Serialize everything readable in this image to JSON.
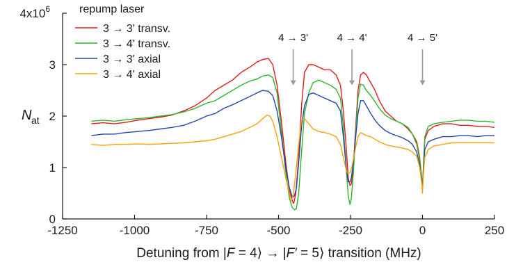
{
  "chart_data": {
    "type": "line",
    "xlabel_parts": {
      "prefix": "Detuning from  |",
      "F": "F",
      "mid1": " = 4",
      "arrow": "⟩ → |",
      "Fp": "F′",
      "mid2": " = 5",
      "suffix": "⟩ transition (MHz)"
    },
    "ylabel_main": "N",
    "ylabel_sub": "at",
    "x_ticks": [
      {
        "value": -1250,
        "label": "-1250"
      },
      {
        "value": -1000,
        "label": "-1000"
      },
      {
        "value": -750,
        "label": "-750"
      },
      {
        "value": -500,
        "label": "-500"
      },
      {
        "value": -250,
        "label": "-250"
      },
      {
        "value": 0,
        "label": "0"
      },
      {
        "value": 250,
        "label": "250"
      }
    ],
    "y_ticks": [
      {
        "value": 0,
        "label": "0"
      },
      {
        "value": 1,
        "label": "1"
      },
      {
        "value": 2,
        "label": "2"
      },
      {
        "value": 3,
        "label": "3"
      },
      {
        "value": 4,
        "label": "4x10",
        "exp": "6"
      }
    ],
    "xlim": [
      -1250,
      250
    ],
    "ylim": [
      0,
      4
    ],
    "y_unit_multiplier": 1000000,
    "grid": false,
    "legend": {
      "title": "repump laser",
      "placement": "top-left",
      "entries": [
        {
          "label": "3 → 3' transv.",
          "color": "#e01b1b"
        },
        {
          "label": "3 → 4' transv.",
          "color": "#2db52d"
        },
        {
          "label": "3 → 3' axial",
          "color": "#2346a8"
        },
        {
          "label": "3 → 4' axial",
          "color": "#f5a20a"
        }
      ]
    },
    "annotations": [
      {
        "label": "4 → 3'",
        "x": -449,
        "y_arrow_top": 3.3,
        "y_arrow_tip": 2.6
      },
      {
        "label": "4 → 4'",
        "x": -245,
        "y_arrow_top": 3.3,
        "y_arrow_tip": 2.6
      },
      {
        "label": "4 → 5'",
        "x": 0,
        "y_arrow_top": 3.3,
        "y_arrow_tip": 2.6
      }
    ],
    "series": [
      {
        "name": "3 → 3' transv.",
        "color": "#e01b1b",
        "x": [
          -1150,
          -1110,
          -1070,
          -1030,
          -990,
          -950,
          -910,
          -870,
          -830,
          -790,
          -750,
          -720,
          -690,
          -660,
          -630,
          -600,
          -575,
          -555,
          -535,
          -520,
          -505,
          -490,
          -475,
          -462,
          -452,
          -447,
          -440,
          -430,
          -420,
          -410,
          -395,
          -380,
          -360,
          -340,
          -320,
          -300,
          -285,
          -275,
          -265,
          -258,
          -252,
          -247,
          -240,
          -232,
          -224,
          -215,
          -205,
          -195,
          -180,
          -165,
          -150,
          -130,
          -110,
          -90,
          -70,
          -50,
          -35,
          -20,
          -10,
          -3,
          0,
          3,
          8,
          20,
          40,
          70,
          100,
          130,
          160,
          190,
          220,
          250
        ],
        "y": [
          1.85,
          1.87,
          1.85,
          1.88,
          1.92,
          1.95,
          1.98,
          2.02,
          2.1,
          2.2,
          2.35,
          2.5,
          2.6,
          2.7,
          2.85,
          2.95,
          3.05,
          3.1,
          3.12,
          3.0,
          2.6,
          1.9,
          1.1,
          0.55,
          0.35,
          0.3,
          0.5,
          1.2,
          2.2,
          2.85,
          3.0,
          3.0,
          2.95,
          2.9,
          2.9,
          2.8,
          2.6,
          2.1,
          1.4,
          0.8,
          0.65,
          0.68,
          1.0,
          1.8,
          2.5,
          2.8,
          2.85,
          2.8,
          2.65,
          2.5,
          2.3,
          2.1,
          2.0,
          1.9,
          1.85,
          1.75,
          1.65,
          1.5,
          1.2,
          0.8,
          0.6,
          0.95,
          1.55,
          1.72,
          1.8,
          1.85,
          1.85,
          1.82,
          1.82,
          1.8,
          1.8,
          1.78
        ]
      },
      {
        "name": "3 → 4' transv.",
        "color": "#2db52d",
        "x": [
          -1150,
          -1110,
          -1070,
          -1030,
          -990,
          -950,
          -910,
          -870,
          -830,
          -790,
          -750,
          -720,
          -690,
          -660,
          -630,
          -600,
          -575,
          -555,
          -535,
          -520,
          -505,
          -490,
          -475,
          -462,
          -452,
          -445,
          -438,
          -430,
          -420,
          -410,
          -395,
          -380,
          -360,
          -340,
          -320,
          -300,
          -285,
          -275,
          -265,
          -258,
          -252,
          -247,
          -240,
          -232,
          -224,
          -215,
          -205,
          -195,
          -180,
          -165,
          -150,
          -130,
          -110,
          -90,
          -70,
          -50,
          -35,
          -20,
          -10,
          -3,
          0,
          3,
          8,
          20,
          40,
          70,
          100,
          130,
          160,
          190,
          220,
          250
        ],
        "y": [
          1.9,
          1.92,
          1.9,
          1.93,
          1.95,
          1.97,
          2.0,
          2.03,
          2.08,
          2.15,
          2.25,
          2.3,
          2.4,
          2.5,
          2.6,
          2.68,
          2.72,
          2.78,
          2.8,
          2.75,
          2.45,
          1.7,
          0.9,
          0.4,
          0.22,
          0.18,
          0.2,
          0.5,
          1.3,
          2.05,
          2.45,
          2.65,
          2.7,
          2.65,
          2.6,
          2.52,
          2.35,
          1.8,
          1.0,
          0.45,
          0.28,
          0.4,
          0.9,
          1.7,
          2.35,
          2.62,
          2.6,
          2.5,
          2.4,
          2.28,
          2.15,
          2.02,
          1.95,
          1.9,
          1.85,
          1.78,
          1.65,
          1.45,
          1.15,
          0.8,
          0.65,
          1.0,
          1.6,
          1.8,
          1.85,
          1.88,
          1.9,
          1.92,
          1.92,
          1.9,
          1.9,
          1.88
        ]
      },
      {
        "name": "3 → 3' axial",
        "color": "#2346a8",
        "x": [
          -1150,
          -1110,
          -1070,
          -1030,
          -990,
          -950,
          -910,
          -870,
          -830,
          -790,
          -750,
          -720,
          -690,
          -660,
          -630,
          -600,
          -575,
          -555,
          -535,
          -520,
          -505,
          -490,
          -475,
          -462,
          -452,
          -445,
          -438,
          -430,
          -420,
          -410,
          -395,
          -380,
          -360,
          -340,
          -320,
          -300,
          -285,
          -275,
          -265,
          -258,
          -252,
          -247,
          -240,
          -232,
          -224,
          -215,
          -205,
          -195,
          -180,
          -165,
          -150,
          -130,
          -110,
          -90,
          -70,
          -50,
          -35,
          -20,
          -10,
          -3,
          0,
          3,
          8,
          20,
          40,
          70,
          100,
          130,
          160,
          190,
          220,
          250
        ],
        "y": [
          1.62,
          1.65,
          1.65,
          1.68,
          1.7,
          1.72,
          1.75,
          1.78,
          1.82,
          1.9,
          2.0,
          2.05,
          2.15,
          2.22,
          2.3,
          2.38,
          2.45,
          2.5,
          2.48,
          2.4,
          2.1,
          1.6,
          1.0,
          0.6,
          0.42,
          0.45,
          0.6,
          1.1,
          1.8,
          2.2,
          2.42,
          2.45,
          2.4,
          2.35,
          2.3,
          2.25,
          2.1,
          1.6,
          1.0,
          0.72,
          0.72,
          0.8,
          1.1,
          1.6,
          2.05,
          2.3,
          2.3,
          2.2,
          2.05,
          1.92,
          1.82,
          1.72,
          1.66,
          1.62,
          1.58,
          1.52,
          1.45,
          1.3,
          1.05,
          0.75,
          0.62,
          0.9,
          1.35,
          1.5,
          1.55,
          1.6,
          1.6,
          1.62,
          1.62,
          1.6,
          1.62,
          1.62
        ]
      },
      {
        "name": "3 → 4' axial",
        "color": "#f5a20a",
        "x": [
          -1150,
          -1110,
          -1070,
          -1030,
          -990,
          -950,
          -910,
          -870,
          -830,
          -790,
          -750,
          -720,
          -690,
          -660,
          -630,
          -600,
          -575,
          -555,
          -540,
          -530,
          -520,
          -505,
          -490,
          -475,
          -462,
          -455,
          -448,
          -440,
          -430,
          -420,
          -410,
          -395,
          -380,
          -360,
          -340,
          -320,
          -300,
          -285,
          -275,
          -265,
          -258,
          -252,
          -247,
          -240,
          -232,
          -224,
          -215,
          -205,
          -195,
          -180,
          -165,
          -150,
          -130,
          -110,
          -90,
          -70,
          -50,
          -35,
          -20,
          -10,
          -3,
          0,
          3,
          8,
          20,
          40,
          70,
          100,
          130,
          160,
          190,
          220,
          250
        ],
        "y": [
          1.45,
          1.43,
          1.45,
          1.45,
          1.46,
          1.45,
          1.46,
          1.47,
          1.48,
          1.5,
          1.52,
          1.55,
          1.6,
          1.65,
          1.7,
          1.78,
          1.85,
          1.95,
          2.02,
          2.0,
          1.9,
          1.6,
          1.2,
          0.8,
          0.5,
          0.35,
          0.5,
          0.9,
          1.45,
          1.92,
          1.95,
          1.85,
          1.75,
          1.7,
          1.68,
          1.65,
          1.6,
          1.45,
          1.2,
          0.95,
          0.88,
          0.9,
          0.98,
          1.15,
          1.4,
          1.6,
          1.68,
          1.65,
          1.62,
          1.6,
          1.55,
          1.5,
          1.45,
          1.42,
          1.4,
          1.38,
          1.35,
          1.3,
          1.22,
          1.0,
          0.7,
          0.5,
          0.85,
          1.2,
          1.35,
          1.42,
          1.45,
          1.48,
          1.48,
          1.48,
          1.48,
          1.48,
          1.48
        ]
      }
    ]
  }
}
